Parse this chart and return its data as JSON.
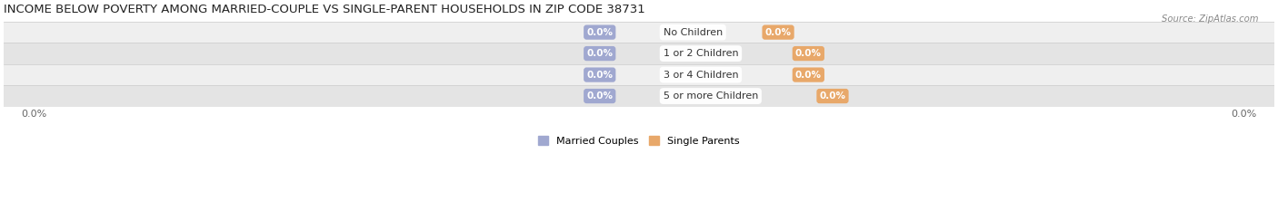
{
  "title": "INCOME BELOW POVERTY AMONG MARRIED-COUPLE VS SINGLE-PARENT HOUSEHOLDS IN ZIP CODE 38731",
  "source": "Source: ZipAtlas.com",
  "categories": [
    "No Children",
    "1 or 2 Children",
    "3 or 4 Children",
    "5 or more Children"
  ],
  "married_values": [
    0.0,
    0.0,
    0.0,
    0.0
  ],
  "single_values": [
    0.0,
    0.0,
    0.0,
    0.0
  ],
  "married_color": "#a0a8d0",
  "single_color": "#e8a86a",
  "married_label": "Married Couples",
  "single_label": "Single Parents",
  "row_bg_colors": [
    "#efefef",
    "#e4e4e4"
  ],
  "row_border_color": "#cccccc",
  "title_fontsize": 9.5,
  "label_fontsize": 8.0,
  "value_fontsize": 7.5,
  "tick_fontsize": 8,
  "x_left_label": "0.0%",
  "x_right_label": "0.0%",
  "background_color": "#ffffff"
}
